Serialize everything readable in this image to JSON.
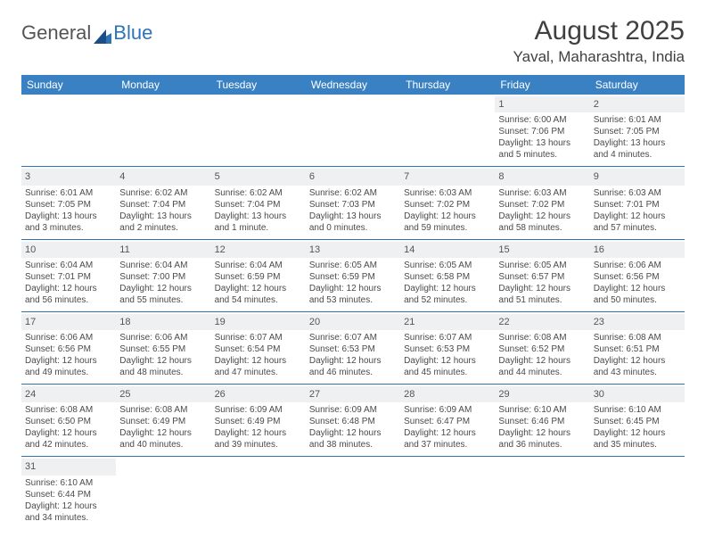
{
  "logo": {
    "part1": "General",
    "part2": "Blue"
  },
  "title": "August 2025",
  "location": "Yaval, Maharashtra, India",
  "colors": {
    "header_bg": "#3a81c3",
    "header_text": "#ffffff",
    "accent": "#2e74b5",
    "daynum_bg": "#eef0f1",
    "body_text": "#4a4a4a",
    "title_text": "#404040"
  },
  "weekdays": [
    "Sunday",
    "Monday",
    "Tuesday",
    "Wednesday",
    "Thursday",
    "Friday",
    "Saturday"
  ],
  "cells": [
    {
      "blank": true
    },
    {
      "blank": true
    },
    {
      "blank": true
    },
    {
      "blank": true
    },
    {
      "blank": true
    },
    {
      "n": "1",
      "sr": "Sunrise: 6:00 AM",
      "ss": "Sunset: 7:06 PM",
      "d1": "Daylight: 13 hours",
      "d2": "and 5 minutes."
    },
    {
      "n": "2",
      "sr": "Sunrise: 6:01 AM",
      "ss": "Sunset: 7:05 PM",
      "d1": "Daylight: 13 hours",
      "d2": "and 4 minutes."
    },
    {
      "n": "3",
      "sr": "Sunrise: 6:01 AM",
      "ss": "Sunset: 7:05 PM",
      "d1": "Daylight: 13 hours",
      "d2": "and 3 minutes."
    },
    {
      "n": "4",
      "sr": "Sunrise: 6:02 AM",
      "ss": "Sunset: 7:04 PM",
      "d1": "Daylight: 13 hours",
      "d2": "and 2 minutes."
    },
    {
      "n": "5",
      "sr": "Sunrise: 6:02 AM",
      "ss": "Sunset: 7:04 PM",
      "d1": "Daylight: 13 hours",
      "d2": "and 1 minute."
    },
    {
      "n": "6",
      "sr": "Sunrise: 6:02 AM",
      "ss": "Sunset: 7:03 PM",
      "d1": "Daylight: 13 hours",
      "d2": "and 0 minutes."
    },
    {
      "n": "7",
      "sr": "Sunrise: 6:03 AM",
      "ss": "Sunset: 7:02 PM",
      "d1": "Daylight: 12 hours",
      "d2": "and 59 minutes."
    },
    {
      "n": "8",
      "sr": "Sunrise: 6:03 AM",
      "ss": "Sunset: 7:02 PM",
      "d1": "Daylight: 12 hours",
      "d2": "and 58 minutes."
    },
    {
      "n": "9",
      "sr": "Sunrise: 6:03 AM",
      "ss": "Sunset: 7:01 PM",
      "d1": "Daylight: 12 hours",
      "d2": "and 57 minutes."
    },
    {
      "n": "10",
      "sr": "Sunrise: 6:04 AM",
      "ss": "Sunset: 7:01 PM",
      "d1": "Daylight: 12 hours",
      "d2": "and 56 minutes."
    },
    {
      "n": "11",
      "sr": "Sunrise: 6:04 AM",
      "ss": "Sunset: 7:00 PM",
      "d1": "Daylight: 12 hours",
      "d2": "and 55 minutes."
    },
    {
      "n": "12",
      "sr": "Sunrise: 6:04 AM",
      "ss": "Sunset: 6:59 PM",
      "d1": "Daylight: 12 hours",
      "d2": "and 54 minutes."
    },
    {
      "n": "13",
      "sr": "Sunrise: 6:05 AM",
      "ss": "Sunset: 6:59 PM",
      "d1": "Daylight: 12 hours",
      "d2": "and 53 minutes."
    },
    {
      "n": "14",
      "sr": "Sunrise: 6:05 AM",
      "ss": "Sunset: 6:58 PM",
      "d1": "Daylight: 12 hours",
      "d2": "and 52 minutes."
    },
    {
      "n": "15",
      "sr": "Sunrise: 6:05 AM",
      "ss": "Sunset: 6:57 PM",
      "d1": "Daylight: 12 hours",
      "d2": "and 51 minutes."
    },
    {
      "n": "16",
      "sr": "Sunrise: 6:06 AM",
      "ss": "Sunset: 6:56 PM",
      "d1": "Daylight: 12 hours",
      "d2": "and 50 minutes."
    },
    {
      "n": "17",
      "sr": "Sunrise: 6:06 AM",
      "ss": "Sunset: 6:56 PM",
      "d1": "Daylight: 12 hours",
      "d2": "and 49 minutes."
    },
    {
      "n": "18",
      "sr": "Sunrise: 6:06 AM",
      "ss": "Sunset: 6:55 PM",
      "d1": "Daylight: 12 hours",
      "d2": "and 48 minutes."
    },
    {
      "n": "19",
      "sr": "Sunrise: 6:07 AM",
      "ss": "Sunset: 6:54 PM",
      "d1": "Daylight: 12 hours",
      "d2": "and 47 minutes."
    },
    {
      "n": "20",
      "sr": "Sunrise: 6:07 AM",
      "ss": "Sunset: 6:53 PM",
      "d1": "Daylight: 12 hours",
      "d2": "and 46 minutes."
    },
    {
      "n": "21",
      "sr": "Sunrise: 6:07 AM",
      "ss": "Sunset: 6:53 PM",
      "d1": "Daylight: 12 hours",
      "d2": "and 45 minutes."
    },
    {
      "n": "22",
      "sr": "Sunrise: 6:08 AM",
      "ss": "Sunset: 6:52 PM",
      "d1": "Daylight: 12 hours",
      "d2": "and 44 minutes."
    },
    {
      "n": "23",
      "sr": "Sunrise: 6:08 AM",
      "ss": "Sunset: 6:51 PM",
      "d1": "Daylight: 12 hours",
      "d2": "and 43 minutes."
    },
    {
      "n": "24",
      "sr": "Sunrise: 6:08 AM",
      "ss": "Sunset: 6:50 PM",
      "d1": "Daylight: 12 hours",
      "d2": "and 42 minutes."
    },
    {
      "n": "25",
      "sr": "Sunrise: 6:08 AM",
      "ss": "Sunset: 6:49 PM",
      "d1": "Daylight: 12 hours",
      "d2": "and 40 minutes."
    },
    {
      "n": "26",
      "sr": "Sunrise: 6:09 AM",
      "ss": "Sunset: 6:49 PM",
      "d1": "Daylight: 12 hours",
      "d2": "and 39 minutes."
    },
    {
      "n": "27",
      "sr": "Sunrise: 6:09 AM",
      "ss": "Sunset: 6:48 PM",
      "d1": "Daylight: 12 hours",
      "d2": "and 38 minutes."
    },
    {
      "n": "28",
      "sr": "Sunrise: 6:09 AM",
      "ss": "Sunset: 6:47 PM",
      "d1": "Daylight: 12 hours",
      "d2": "and 37 minutes."
    },
    {
      "n": "29",
      "sr": "Sunrise: 6:10 AM",
      "ss": "Sunset: 6:46 PM",
      "d1": "Daylight: 12 hours",
      "d2": "and 36 minutes."
    },
    {
      "n": "30",
      "sr": "Sunrise: 6:10 AM",
      "ss": "Sunset: 6:45 PM",
      "d1": "Daylight: 12 hours",
      "d2": "and 35 minutes."
    },
    {
      "n": "31",
      "sr": "Sunrise: 6:10 AM",
      "ss": "Sunset: 6:44 PM",
      "d1": "Daylight: 12 hours",
      "d2": "and 34 minutes."
    },
    {
      "blank": true
    },
    {
      "blank": true
    },
    {
      "blank": true
    },
    {
      "blank": true
    },
    {
      "blank": true
    },
    {
      "blank": true
    }
  ]
}
